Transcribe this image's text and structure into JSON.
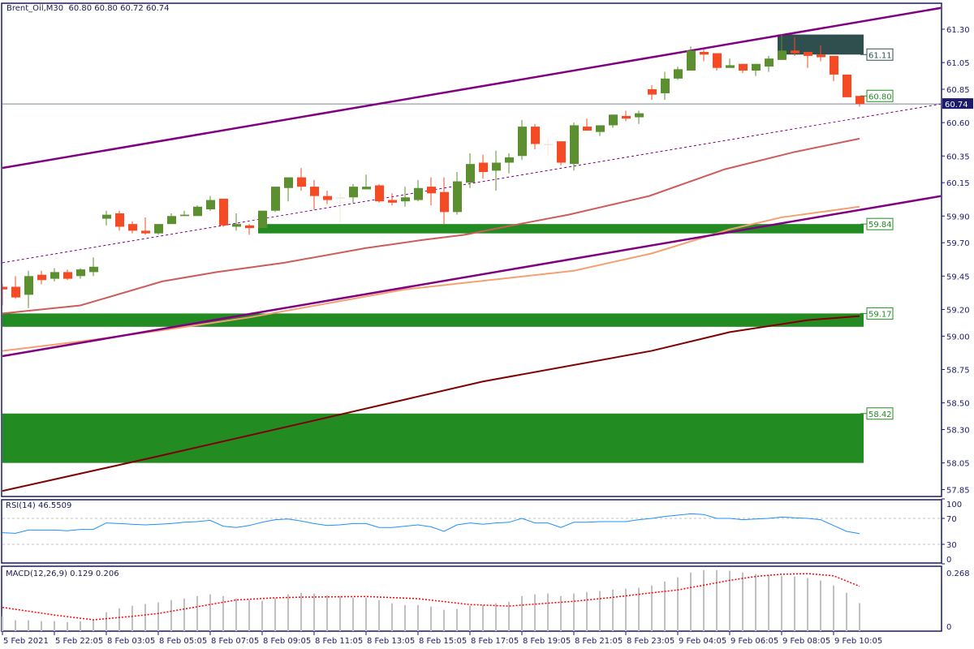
{
  "header": {
    "symbol": "Brent_Oil,M30",
    "ohlc": "60.80 60.80 60.72 60.74"
  },
  "rsi_header": "RSI(14) 46.5509",
  "macd_header": "MACD(12,26,9) 0.129 0.206",
  "colors": {
    "bull": "#5b8f2f",
    "bear": "#f44b25",
    "doji": "#efe6d6",
    "channel": "#800080",
    "zone": "#228b22",
    "resistance_zone": "#2f4f4f",
    "ma_fast": "#cd5c5c",
    "ma_mid": "#f4a070",
    "ma_slow": "#800000",
    "rsi": "#1e90ff",
    "macd_hist": "#c0c0c0",
    "macd_signal": "#ff0000",
    "axis": "#1a1a6e",
    "current_price": "#778899"
  },
  "chart_data": [
    {
      "type": "candlestick",
      "title": "Brent_Oil,M30",
      "ylim": [
        57.8,
        61.49
      ],
      "y_ticks": [
        "61.30",
        "61.05",
        "60.85",
        "60.60",
        "60.35",
        "60.15",
        "59.90",
        "59.70",
        "59.45",
        "59.20",
        "59.00",
        "58.75",
        "58.50",
        "58.30",
        "58.05",
        "57.85"
      ],
      "x_tick_labels": [
        "5 Feb 2021",
        "5 Feb 22:05",
        "8 Feb 03:05",
        "8 Feb 05:05",
        "8 Feb 07:05",
        "8 Feb 09:05",
        "8 Feb 11:05",
        "8 Feb 13:05",
        "8 Feb 15:05",
        "8 Feb 17:05",
        "8 Feb 19:05",
        "8 Feb 21:05",
        "8 Feb 23:05",
        "9 Feb 04:05",
        "9 Feb 06:05",
        "9 Feb 08:05",
        "9 Feb 10:05"
      ],
      "x_tick_every_bars": 4,
      "current_price": "60.74",
      "ohlc": [
        [
          59.37,
          59.39,
          59.23,
          59.35
        ],
        [
          59.37,
          59.45,
          59.28,
          59.29
        ],
        [
          59.31,
          59.49,
          59.21,
          59.45
        ],
        [
          59.46,
          59.49,
          59.39,
          59.42
        ],
        [
          59.43,
          59.51,
          59.41,
          59.48
        ],
        [
          59.48,
          59.5,
          59.42,
          59.43
        ],
        [
          59.45,
          59.51,
          59.43,
          59.5
        ],
        [
          59.48,
          59.59,
          59.45,
          59.52
        ],
        [
          59.88,
          59.94,
          59.83,
          59.91
        ],
        [
          59.92,
          59.94,
          59.79,
          59.82
        ],
        [
          59.84,
          59.86,
          59.77,
          59.79
        ],
        [
          59.79,
          59.89,
          59.76,
          59.77
        ],
        [
          59.77,
          59.84,
          59.76,
          59.84
        ],
        [
          59.84,
          59.92,
          59.84,
          59.9
        ],
        [
          59.9,
          59.94,
          59.9,
          59.91
        ],
        [
          59.9,
          59.98,
          59.9,
          59.97
        ],
        [
          59.95,
          60.05,
          59.94,
          60.02
        ],
        [
          60.03,
          60.03,
          59.82,
          59.83
        ],
        [
          59.82,
          59.92,
          59.79,
          59.84
        ],
        [
          59.83,
          59.84,
          59.76,
          59.81
        ],
        [
          59.81,
          59.94,
          59.81,
          59.94
        ],
        [
          59.94,
          60.12,
          59.93,
          60.12
        ],
        [
          60.11,
          60.19,
          60.01,
          60.19
        ],
        [
          60.19,
          60.26,
          60.09,
          60.12
        ],
        [
          60.12,
          60.17,
          59.95,
          60.05
        ],
        [
          60.05,
          60.09,
          59.99,
          60.02
        ],
        [
          60.04,
          60.07,
          59.85,
          60.04
        ],
        [
          60.04,
          60.14,
          60.0,
          60.12
        ],
        [
          60.1,
          60.21,
          60.1,
          60.12
        ],
        [
          60.13,
          60.14,
          60.0,
          60.01
        ],
        [
          60.02,
          60.07,
          59.98,
          60.0
        ],
        [
          60.01,
          60.12,
          59.97,
          60.04
        ],
        [
          60.02,
          60.17,
          60.01,
          60.11
        ],
        [
          60.12,
          60.19,
          59.98,
          60.07
        ],
        [
          60.08,
          60.19,
          59.84,
          59.93
        ],
        [
          59.93,
          60.23,
          59.91,
          60.16
        ],
        [
          60.15,
          60.37,
          60.11,
          60.29
        ],
        [
          60.3,
          60.36,
          60.18,
          60.23
        ],
        [
          60.24,
          60.39,
          60.09,
          60.3
        ],
        [
          60.3,
          60.37,
          60.22,
          60.34
        ],
        [
          60.35,
          60.62,
          60.32,
          60.57
        ],
        [
          60.57,
          60.59,
          60.4,
          60.44
        ],
        [
          60.44,
          60.48,
          60.35,
          60.44
        ],
        [
          60.46,
          60.46,
          60.28,
          60.3
        ],
        [
          60.29,
          60.6,
          60.24,
          60.58
        ],
        [
          60.57,
          60.63,
          60.54,
          60.54
        ],
        [
          60.53,
          60.58,
          60.5,
          60.58
        ],
        [
          60.58,
          60.66,
          60.56,
          60.66
        ],
        [
          60.65,
          60.69,
          60.61,
          60.63
        ],
        [
          60.64,
          60.69,
          60.59,
          60.67
        ],
        [
          60.85,
          60.88,
          60.77,
          60.81
        ],
        [
          60.82,
          60.98,
          60.77,
          60.93
        ],
        [
          60.93,
          61.02,
          60.92,
          61.0
        ],
        [
          60.99,
          61.17,
          60.99,
          61.14
        ],
        [
          61.13,
          61.15,
          61.06,
          61.11
        ],
        [
          61.12,
          61.12,
          60.99,
          61.01
        ],
        [
          61.01,
          61.08,
          61.01,
          61.03
        ],
        [
          61.04,
          61.04,
          60.97,
          60.99
        ],
        [
          60.99,
          61.04,
          60.95,
          61.04
        ],
        [
          61.02,
          61.1,
          60.98,
          61.08
        ],
        [
          61.07,
          61.26,
          61.07,
          61.14
        ],
        [
          61.14,
          61.24,
          61.1,
          61.12
        ],
        [
          61.13,
          61.13,
          61.01,
          61.1
        ],
        [
          61.11,
          61.18,
          61.06,
          61.09
        ],
        [
          61.1,
          61.1,
          60.91,
          60.96
        ],
        [
          60.96,
          60.96,
          60.79,
          60.79
        ],
        [
          60.8,
          60.8,
          60.72,
          60.74
        ]
      ],
      "trendlines": [
        {
          "name": "channel-upper",
          "style": "solid",
          "from": [
            0,
            60.26
          ],
          "to": [
            72.3,
            61.46
          ]
        },
        {
          "name": "channel-lower",
          "style": "solid",
          "from": [
            0,
            58.85
          ],
          "to": [
            72.3,
            60.05
          ]
        },
        {
          "name": "channel-middle",
          "style": "dashed",
          "from": [
            0,
            59.55
          ],
          "to": [
            72.3,
            60.74
          ]
        }
      ],
      "moving_averages": [
        {
          "key": "ma_fast",
          "points": [
            [
              0,
              59.17
            ],
            [
              6,
              59.23
            ],
            [
              12.3,
              59.41
            ],
            [
              16.5,
              59.48
            ],
            [
              21.7,
              59.55
            ],
            [
              28,
              59.66
            ],
            [
              32.3,
              59.72
            ],
            [
              35.6,
              59.76
            ],
            [
              39.8,
              59.84
            ],
            [
              43.6,
              59.91
            ],
            [
              49.8,
              60.05
            ],
            [
              55.6,
              60.25
            ],
            [
              61,
              60.38
            ],
            [
              66,
              60.48
            ]
          ]
        },
        {
          "key": "ma_mid",
          "points": [
            [
              0,
              58.89
            ],
            [
              6,
              58.96
            ],
            [
              12,
              59.04
            ],
            [
              19,
              59.14
            ],
            [
              31,
              59.35
            ],
            [
              44,
              59.49
            ],
            [
              50,
              59.62
            ],
            [
              56,
              59.8
            ],
            [
              60,
              59.89
            ],
            [
              66,
              59.97
            ]
          ]
        },
        {
          "key": "ma_slow",
          "points": [
            [
              0,
              57.84
            ],
            [
              12,
              58.1
            ],
            [
              25,
              58.39
            ],
            [
              37,
              58.66
            ],
            [
              50,
              58.89
            ],
            [
              56,
              59.03
            ],
            [
              62,
              59.12
            ],
            [
              66,
              59.15
            ]
          ]
        }
      ],
      "zones": [
        {
          "key": "resistance_zone",
          "from_bar": 60,
          "to_bar": 66,
          "top": 61.26,
          "bottom": 61.11,
          "label": "61.11"
        },
        {
          "key": "zone",
          "from_bar": 20,
          "to_bar": 66,
          "top": 59.84,
          "bottom": 59.77,
          "label": "59.84"
        },
        {
          "key": "zone",
          "from_bar": 0,
          "to_bar": 66,
          "top": 59.17,
          "bottom": 59.07,
          "label": "59.17"
        },
        {
          "key": "zone",
          "from_bar": 0,
          "to_bar": 66,
          "top": 58.42,
          "bottom": 58.05,
          "label": "58.42"
        }
      ],
      "price_labels": [
        {
          "price": 60.8,
          "label": "60.80"
        }
      ]
    },
    {
      "type": "line",
      "title": "RSI(14) 46.5509",
      "ylim": [
        0,
        100
      ],
      "levels": [
        70,
        30
      ],
      "y_ticks": [
        "100",
        "70",
        "30",
        "0"
      ],
      "values": [
        48,
        47,
        52,
        52,
        52,
        51,
        53,
        53,
        63,
        62,
        61,
        60,
        61,
        62,
        64,
        65,
        67,
        58,
        56,
        59,
        64,
        68,
        69,
        66,
        62,
        59,
        60,
        62,
        62,
        56,
        56,
        58,
        60,
        57,
        50,
        60,
        63,
        61,
        63,
        64,
        70,
        63,
        63,
        56,
        64,
        64,
        65,
        65,
        65,
        68,
        70,
        73,
        75,
        77,
        76,
        70,
        70,
        68,
        69,
        70,
        72,
        71,
        70,
        68,
        59,
        50,
        46.55
      ]
    },
    {
      "type": "bar",
      "title": "MACD(12,26,9) 0.129 0.206",
      "ylim": [
        0,
        0.268
      ],
      "y_ticks": [
        "0.268",
        "0"
      ],
      "values": [
        0.068,
        0.05,
        0.05,
        0.046,
        0.046,
        0.042,
        0.046,
        0.05,
        0.087,
        0.105,
        0.117,
        0.124,
        0.132,
        0.143,
        0.15,
        0.161,
        0.169,
        0.161,
        0.15,
        0.143,
        0.139,
        0.151,
        0.169,
        0.176,
        0.173,
        0.165,
        0.161,
        0.154,
        0.154,
        0.143,
        0.128,
        0.12,
        0.12,
        0.113,
        0.098,
        0.102,
        0.117,
        0.12,
        0.128,
        0.135,
        0.161,
        0.169,
        0.173,
        0.161,
        0.173,
        0.18,
        0.184,
        0.191,
        0.195,
        0.199,
        0.21,
        0.228,
        0.247,
        0.269,
        0.28,
        0.28,
        0.277,
        0.269,
        0.262,
        0.258,
        0.254,
        0.251,
        0.243,
        0.232,
        0.21,
        0.176,
        0.129
      ],
      "signal": [
        [
          0,
          0.109
        ],
        [
          4,
          0.074
        ],
        [
          7,
          0.052
        ],
        [
          10,
          0.068
        ],
        [
          12,
          0.081
        ],
        [
          15,
          0.112
        ],
        [
          18,
          0.143
        ],
        [
          21,
          0.153
        ],
        [
          23,
          0.156
        ],
        [
          28,
          0.159
        ],
        [
          32,
          0.149
        ],
        [
          36,
          0.122
        ],
        [
          39,
          0.115
        ],
        [
          41,
          0.124
        ],
        [
          44,
          0.137
        ],
        [
          47,
          0.155
        ],
        [
          50,
          0.176
        ],
        [
          52,
          0.189
        ],
        [
          54,
          0.211
        ],
        [
          56,
          0.233
        ],
        [
          58,
          0.251
        ],
        [
          60,
          0.261
        ],
        [
          62,
          0.264
        ],
        [
          64,
          0.254
        ],
        [
          66,
          0.206
        ]
      ]
    }
  ]
}
